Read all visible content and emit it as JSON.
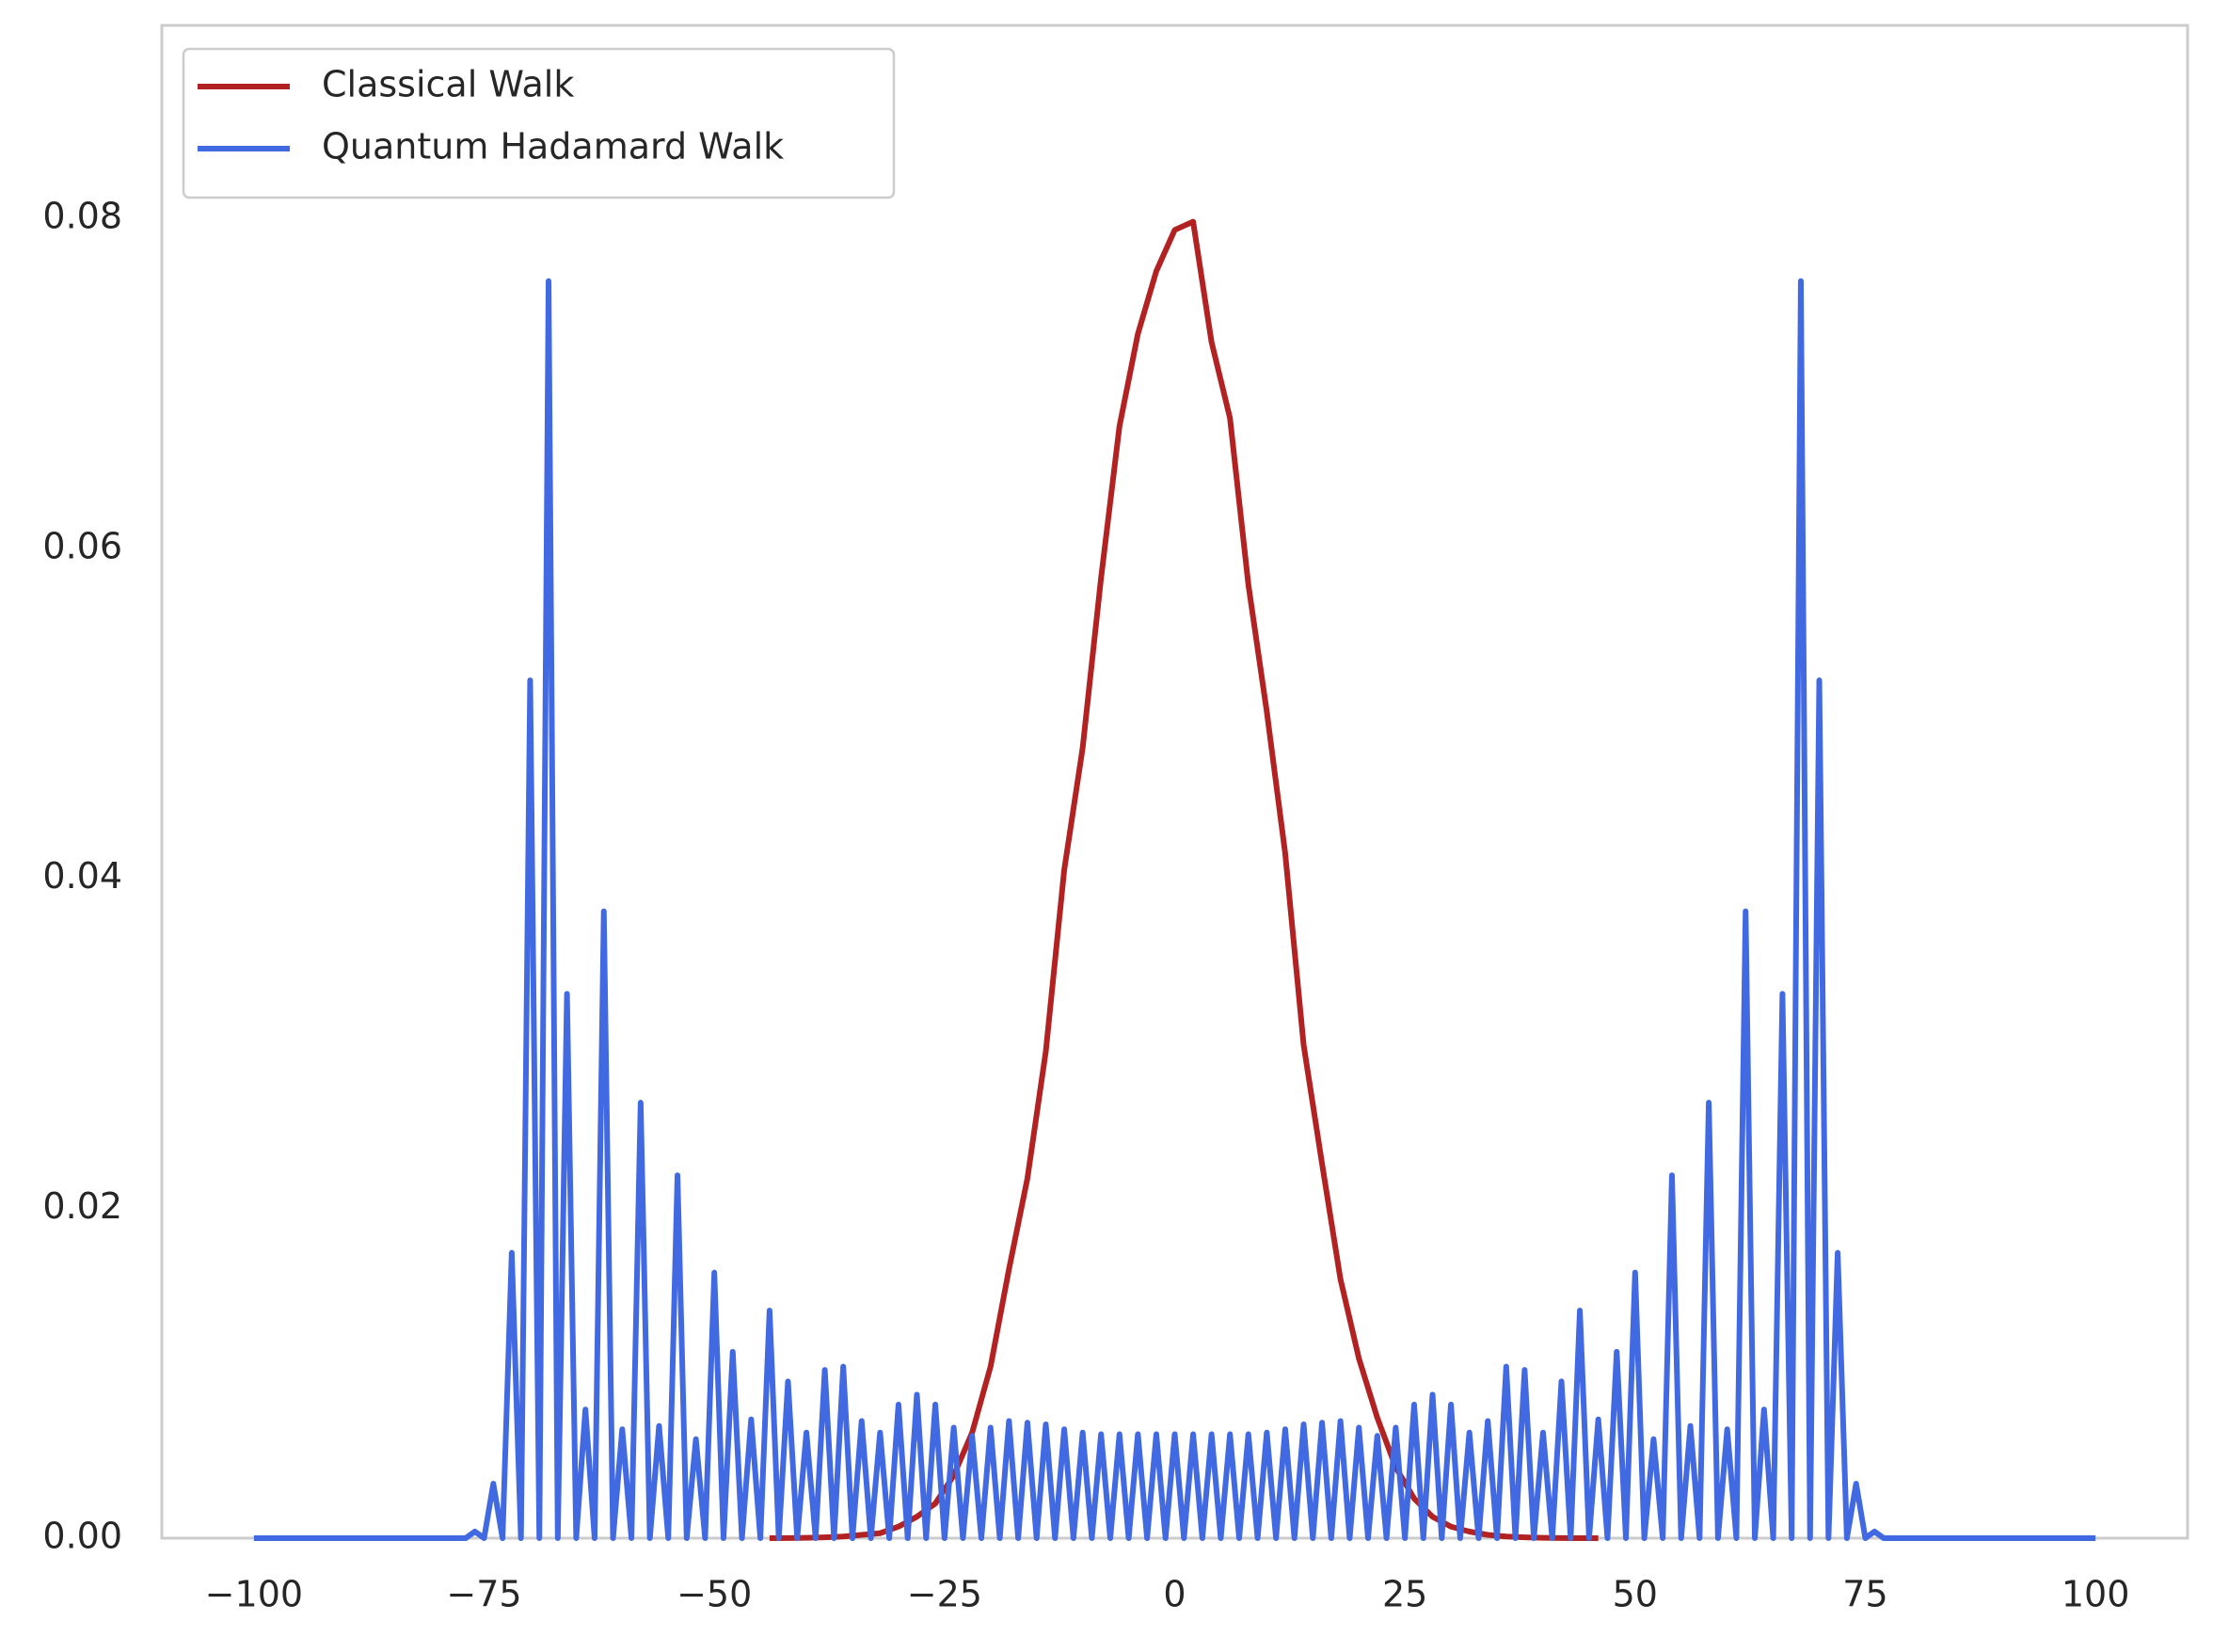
{
  "chart_data": {
    "type": "line",
    "xlim": [
      -110,
      110
    ],
    "ylim": [
      0,
      0.0917
    ],
    "xticks": [
      {
        "value": -100,
        "label": "−100"
      },
      {
        "value": -75,
        "label": "−75"
      },
      {
        "value": -50,
        "label": "−50"
      },
      {
        "value": -25,
        "label": "−25"
      },
      0,
      25,
      50,
      75,
      100
    ],
    "yticks": [
      {
        "value": 0,
        "label": "0.00"
      },
      {
        "value": 0.02,
        "label": "0.02"
      },
      {
        "value": 0.04,
        "label": "0.04"
      },
      {
        "value": 0.06,
        "label": "0.06"
      },
      {
        "value": 0.08,
        "label": "0.08"
      }
    ],
    "grid": false,
    "legend": "upper left",
    "series": [
      {
        "name": "Classical Walk",
        "color": "#b22222",
        "x": [
          -44,
          -42,
          -40,
          -38,
          -36,
          -34,
          -32,
          -30,
          -28,
          -26,
          -24,
          -22,
          -20,
          -18,
          -16,
          -14,
          -12,
          -10,
          -8,
          -6,
          -4,
          -2,
          0,
          2,
          4,
          6,
          8,
          10,
          12,
          14,
          16,
          18,
          20,
          22,
          24,
          26,
          28,
          30,
          32,
          34,
          36,
          38,
          40,
          42,
          44,
          46
        ],
        "values": [
          0,
          1e-05,
          2e-05,
          5e-05,
          0.0001,
          0.0002,
          0.0003,
          0.0007,
          0.0013,
          0.0021,
          0.0038,
          0.0064,
          0.0104,
          0.0163,
          0.0218,
          0.0295,
          0.0405,
          0.0479,
          0.0582,
          0.0674,
          0.073,
          0.0768,
          0.0793,
          0.0798,
          0.0725,
          0.0679,
          0.0578,
          0.0501,
          0.0415,
          0.0299,
          0.0227,
          0.0157,
          0.0109,
          0.0073,
          0.0043,
          0.0024,
          0.0013,
          0.0007,
          0.0004,
          0.0002,
          0.0001,
          5e-05,
          2e-05,
          1e-05,
          0,
          0
        ]
      },
      {
        "name": "Quantum Hadamard Walk",
        "color": "#4169e1",
        "x": [
          -100,
          -99,
          -98,
          -97,
          -96,
          -95,
          -94,
          -93,
          -92,
          -91,
          -90,
          -89,
          -88,
          -87,
          -86,
          -85,
          -84,
          -83,
          -82,
          -81,
          -80,
          -79,
          -78,
          -77,
          -76,
          -75,
          -74,
          -73,
          -72,
          -71,
          -70,
          -69,
          -68,
          -67,
          -66,
          -65,
          -64,
          -63,
          -62,
          -61,
          -60,
          -59,
          -58,
          -57,
          -56,
          -55,
          -54,
          -53,
          -52,
          -51,
          -50,
          -49,
          -48,
          -47,
          -46,
          -45,
          -44,
          -43,
          -42,
          -41,
          -40,
          -39,
          -38,
          -37,
          -36,
          -35,
          -34,
          -33,
          -32,
          -31,
          -30,
          -29,
          -28,
          -27,
          -26,
          -25,
          -24,
          -23,
          -22,
          -21,
          -20,
          -19,
          -18,
          -17,
          -16,
          -15,
          -14,
          -13,
          -12,
          -11,
          -10,
          -9,
          -8,
          -7,
          -6,
          -5,
          -4,
          -3,
          -2,
          -1,
          0,
          1,
          2,
          3,
          4,
          5,
          6,
          7,
          8,
          9,
          10,
          11,
          12,
          13,
          14,
          15,
          16,
          17,
          18,
          19,
          20,
          21,
          22,
          23,
          24,
          25,
          26,
          27,
          28,
          29,
          30,
          31,
          32,
          33,
          34,
          35,
          36,
          37,
          38,
          39,
          40,
          41,
          42,
          43,
          44,
          45,
          46,
          47,
          48,
          49,
          50,
          51,
          52,
          53,
          54,
          55,
          56,
          57,
          58,
          59,
          60,
          61,
          62,
          63,
          64,
          65,
          66,
          67,
          68,
          69,
          70,
          71,
          72,
          73,
          74,
          75,
          76,
          77,
          78,
          79,
          80,
          81,
          82,
          83,
          84,
          85,
          86,
          87,
          88,
          89,
          90,
          91,
          92,
          93,
          94,
          95,
          96,
          97,
          98,
          99,
          100
        ],
        "values": [
          0,
          0,
          0,
          0,
          0,
          0,
          0,
          0,
          0,
          0,
          0,
          0,
          0,
          0,
          0,
          0,
          0,
          0,
          0,
          0,
          0,
          0,
          0,
          0,
          0.0004,
          0,
          0.0033,
          0,
          0.0173,
          0,
          0.052,
          0,
          0.0762,
          0,
          0.033,
          0,
          0.0078,
          0,
          0.038,
          0,
          0.0066,
          0,
          0.0264,
          0,
          0.0068,
          0,
          0.022,
          0,
          0.006,
          0,
          0.0161,
          0,
          0.0113,
          0,
          0.0072,
          0,
          0.0138,
          0,
          0.0095,
          0,
          0.0064,
          0,
          0.0102,
          0,
          0.0104,
          0,
          0.0071,
          0,
          0.0064,
          0,
          0.0081,
          0,
          0.0087,
          0,
          0.0081,
          0,
          0.0067,
          0,
          0.0062,
          0,
          0.0067,
          0,
          0.0071,
          0,
          0.007,
          0,
          0.0069,
          0,
          0.0066,
          0,
          0.0064,
          0,
          0.0063,
          0,
          0.0063,
          0,
          0.0063,
          0,
          0.0063,
          0,
          0.0063,
          0,
          0.0063,
          0,
          0.0063,
          0,
          0.0063,
          0,
          0.0063,
          0,
          0.0064,
          0,
          0.0066,
          0,
          0.0069,
          0,
          0.007,
          0,
          0.0071,
          0,
          0.0067,
          0,
          0.0062,
          0,
          0.0067,
          0,
          0.0081,
          0,
          0.0087,
          0,
          0.0081,
          0,
          0.0064,
          0,
          0.0071,
          0,
          0.0104,
          0,
          0.0102,
          0,
          0.0064,
          0,
          0.0095,
          0,
          0.0138,
          0,
          0.0072,
          0,
          0.0113,
          0,
          0.0161,
          0,
          0.006,
          0,
          0.022,
          0,
          0.0068,
          0,
          0.0264,
          0,
          0.0066,
          0,
          0.038,
          0,
          0.0078,
          0,
          0.033,
          0,
          0.0762,
          0,
          0.052,
          0,
          0.0173,
          0,
          0.0033,
          0,
          0.0004,
          0,
          0,
          0,
          0,
          0,
          0,
          0,
          0,
          0,
          0,
          0,
          0,
          0,
          0,
          0,
          0,
          0,
          0,
          0,
          0,
          0,
          0,
          0,
          0
        ]
      }
    ]
  }
}
